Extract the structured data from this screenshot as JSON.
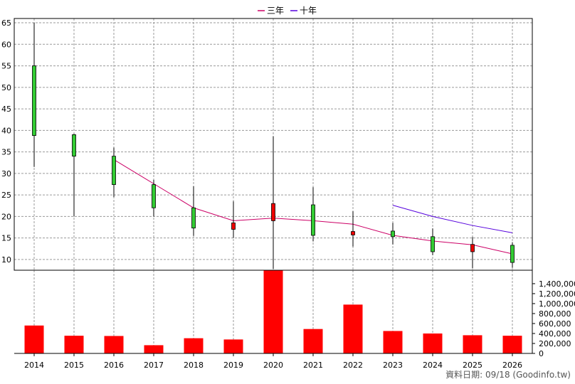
{
  "chart_data": [
    {
      "type": "candlestick",
      "categories": [
        "2014",
        "2015",
        "2016",
        "2017",
        "2018",
        "2019",
        "2020",
        "2021",
        "2022",
        "2023",
        "2024",
        "2025",
        "2026"
      ],
      "ylim": [
        7.5,
        66
      ],
      "yticks": [
        10,
        15,
        20,
        25,
        30,
        35,
        40,
        45,
        50,
        55,
        60,
        65
      ],
      "grid": true,
      "candles": [
        {
          "open": 55,
          "high": 65,
          "low": 31.5,
          "close": 38.8
        },
        {
          "open": 39,
          "high": 39.2,
          "low": 20,
          "close": 34
        },
        {
          "open": 34,
          "high": 36,
          "low": 24.5,
          "close": 27.4
        },
        {
          "open": 27.4,
          "high": 28.5,
          "low": 20,
          "close": 22
        },
        {
          "open": 22,
          "high": 27,
          "low": 15.5,
          "close": 17.3
        },
        {
          "open": 17,
          "high": 23.5,
          "low": 15,
          "close": 18.5
        },
        {
          "open": 19,
          "high": 38.6,
          "low": 7.8,
          "close": 23
        },
        {
          "open": 22.7,
          "high": 26.8,
          "low": 14.2,
          "close": 15.6
        },
        {
          "open": 15.7,
          "high": 21.2,
          "low": 13,
          "close": 16.5
        },
        {
          "open": 16.6,
          "high": 18.5,
          "low": 13.5,
          "close": 15.3
        },
        {
          "open": 15.3,
          "high": 17.2,
          "low": 11,
          "close": 11.8
        },
        {
          "open": 11.8,
          "high": 15.2,
          "low": 8,
          "close": 13.5
        },
        {
          "open": 13.3,
          "high": 14,
          "low": 8.1,
          "close": 9.3
        }
      ],
      "series": [
        {
          "name": "三年",
          "color": "#cc0066",
          "points": [
            {
              "x": "2016",
              "y": 33.2
            },
            {
              "x": "2017",
              "y": 27.6
            },
            {
              "x": "2018",
              "y": 22
            },
            {
              "x": "2019",
              "y": 19
            },
            {
              "x": "2020",
              "y": 19.6
            },
            {
              "x": "2021",
              "y": 19
            },
            {
              "x": "2022",
              "y": 18.2
            },
            {
              "x": "2023",
              "y": 15.6
            },
            {
              "x": "2024",
              "y": 14.3
            },
            {
              "x": "2025",
              "y": 13.4
            },
            {
              "x": "2026",
              "y": 11.3
            }
          ]
        },
        {
          "name": "十年",
          "color": "#5500dd",
          "points": [
            {
              "x": "2023",
              "y": 22.6
            },
            {
              "x": "2024",
              "y": 20
            },
            {
              "x": "2025",
              "y": 17.9
            },
            {
              "x": "2026",
              "y": 16.2
            }
          ]
        }
      ],
      "up_color": "#33cc33",
      "down_color": "#ee0000"
    },
    {
      "type": "bar",
      "categories": [
        "2014",
        "2015",
        "2016",
        "2017",
        "2018",
        "2019",
        "2020",
        "2021",
        "2022",
        "2023",
        "2024",
        "2025",
        "2026"
      ],
      "values": [
        560000,
        355000,
        350000,
        165000,
        305000,
        280000,
        1670000,
        490000,
        980000,
        450000,
        400000,
        365000,
        355000
      ],
      "ylim": [
        0,
        1670000
      ],
      "yticks": [
        0,
        200000,
        400000,
        600000,
        800000,
        1000000,
        1200000,
        1400000
      ],
      "ytick_labels": [
        "0",
        "200,000",
        "400,000",
        "600,000",
        "800,000",
        "1,000,000",
        "1,200,000",
        "1,400,000"
      ],
      "bar_color": "#ff0000"
    }
  ],
  "legend": [
    {
      "label": "三年",
      "color": "#cc0066"
    },
    {
      "label": "十年",
      "color": "#5500dd"
    }
  ],
  "source_text": "資料日期: 09/18 (Goodinfo.tw)"
}
